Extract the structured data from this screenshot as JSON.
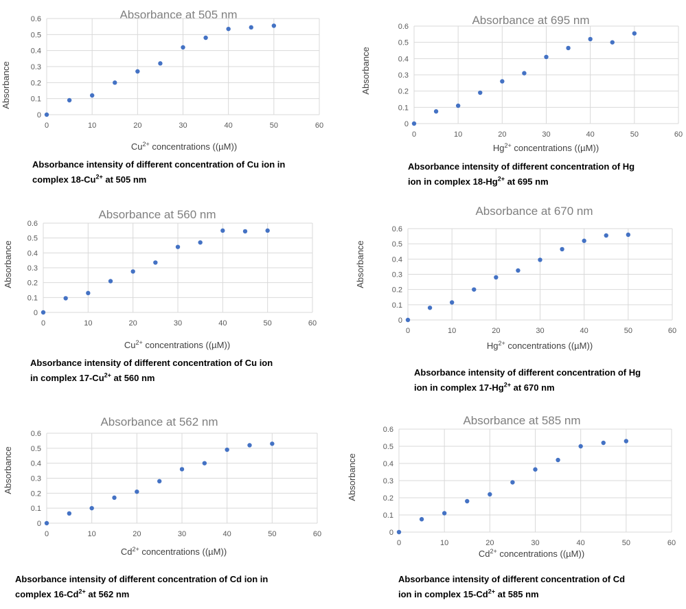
{
  "colors": {
    "marker": "#4472c4",
    "grid": "#d9d9d9",
    "title": "#7f7f7f",
    "tick": "#595959"
  },
  "chart_data": [
    {
      "type": "scatter",
      "title": "Absorbance at 505 nm",
      "xlabel": {
        "pre": "Cu",
        "sup": "2+",
        "post": " concentrations ((µM))"
      },
      "ylabel": "Absorbance",
      "x": [
        0,
        5,
        10,
        15,
        20,
        25,
        30,
        35,
        40,
        45,
        50
      ],
      "y": [
        0.0,
        0.09,
        0.12,
        0.2,
        0.27,
        0.32,
        0.42,
        0.48,
        0.535,
        0.545,
        0.555
      ],
      "xlim": [
        0,
        60
      ],
      "ylim": [
        0,
        0.6
      ],
      "xticks": [
        "0",
        "10",
        "20",
        "30",
        "40",
        "50",
        "60"
      ],
      "yticks": [
        "0",
        "0.1",
        "0.2",
        "0.3",
        "0.4",
        "0.5",
        "0.6"
      ],
      "caption": {
        "line1": "Absorbance intensity of different concentration of Cu ion in",
        "pre": "complex 18-Cu",
        "sup": "2+",
        "post": " at 505 nm"
      }
    },
    {
      "type": "scatter",
      "title": "Absorbance at 695 nm",
      "xlabel": {
        "pre": "Hg",
        "sup": "2+",
        "post": " concentrations ((µM))"
      },
      "ylabel": "Absorbance",
      "x": [
        0,
        5,
        10,
        15,
        20,
        25,
        30,
        35,
        40,
        45,
        50
      ],
      "y": [
        0.0,
        0.075,
        0.11,
        0.19,
        0.26,
        0.31,
        0.41,
        0.465,
        0.52,
        0.5,
        0.555
      ],
      "xlim": [
        0,
        60
      ],
      "ylim": [
        0,
        0.6
      ],
      "xticks": [
        "0",
        "10",
        "20",
        "30",
        "40",
        "50",
        "60"
      ],
      "yticks": [
        "0",
        "0.1",
        "0.2",
        "0.3",
        "0.4",
        "0.5",
        "0.6"
      ],
      "caption": {
        "line1": "Absorbance intensity of different concentration of Hg",
        "pre": "ion in complex 18-Hg",
        "sup": "2+",
        "post": " at 695 nm"
      }
    },
    {
      "type": "scatter",
      "title": "Absorbance at 560 nm",
      "xlabel": {
        "pre": "Cu",
        "sup": "2+",
        "post": " concentrations ((µM))"
      },
      "ylabel": "Absorbance",
      "x": [
        0,
        5,
        10,
        15,
        20,
        25,
        30,
        35,
        40,
        45,
        50
      ],
      "y": [
        0.0,
        0.095,
        0.13,
        0.21,
        0.275,
        0.335,
        0.44,
        0.47,
        0.55,
        0.545,
        0.55
      ],
      "xlim": [
        0,
        60
      ],
      "ylim": [
        0,
        0.6
      ],
      "xticks": [
        "0",
        "10",
        "20",
        "30",
        "40",
        "50",
        "60"
      ],
      "yticks": [
        "0",
        "0.1",
        "0.2",
        "0.3",
        "0.4",
        "0.5",
        "0.6"
      ],
      "caption": {
        "line1": "Absorbance intensity of different concentration of Cu ion",
        "pre": "in complex 17-Cu",
        "sup": "2+",
        "post": " at 560 nm"
      }
    },
    {
      "type": "scatter",
      "title": "Absorbance at 670 nm",
      "xlabel": {
        "pre": "Hg",
        "sup": "2+",
        "post": " concentrations ((µM))"
      },
      "ylabel": "Absorbance",
      "x": [
        0,
        5,
        10,
        15,
        20,
        25,
        30,
        35,
        40,
        45,
        50
      ],
      "y": [
        0.0,
        0.08,
        0.115,
        0.2,
        0.28,
        0.325,
        0.395,
        0.465,
        0.52,
        0.555,
        0.56
      ],
      "xlim": [
        0,
        60
      ],
      "ylim": [
        0,
        0.6
      ],
      "xticks": [
        "0",
        "10",
        "20",
        "30",
        "40",
        "50",
        "60"
      ],
      "yticks": [
        "0",
        "0.1",
        "0.2",
        "0.3",
        "0.4",
        "0.5",
        "0.6"
      ],
      "caption": {
        "line1": "Absorbance intensity of different concentration of Hg",
        "pre": "ion in complex 17-Hg",
        "sup": "2+",
        "post": " at 670 nm"
      }
    },
    {
      "type": "scatter",
      "title": "Absorbance at 562 nm",
      "xlabel": {
        "pre": "Cd",
        "sup": "2+",
        "post": " concentrations ((µM))"
      },
      "ylabel": "Absorbance",
      "x": [
        0,
        5,
        10,
        15,
        20,
        25,
        30,
        35,
        40,
        45,
        50
      ],
      "y": [
        0.0,
        0.065,
        0.1,
        0.17,
        0.21,
        0.28,
        0.36,
        0.4,
        0.49,
        0.52,
        0.53
      ],
      "xlim": [
        0,
        60
      ],
      "ylim": [
        0,
        0.6
      ],
      "xticks": [
        "0",
        "10",
        "20",
        "30",
        "40",
        "50",
        "60"
      ],
      "yticks": [
        "0",
        "0.1",
        "0.2",
        "0.3",
        "0.4",
        "0.5",
        "0.6"
      ],
      "caption": {
        "line1": "Absorbance intensity of different concentration of Cd ion in",
        "pre": "complex 16-Cd",
        "sup": "2+",
        "post": " at 562 nm"
      }
    },
    {
      "type": "scatter",
      "title": "Absorbance at 585 nm",
      "xlabel": {
        "pre": "Cd",
        "sup": "2+",
        "post": " concentrations ((µM))"
      },
      "ylabel": "Absorbance",
      "x": [
        0,
        5,
        10,
        15,
        20,
        25,
        30,
        35,
        40,
        45,
        50
      ],
      "y": [
        0.0,
        0.075,
        0.11,
        0.18,
        0.22,
        0.29,
        0.365,
        0.42,
        0.5,
        0.52,
        0.53
      ],
      "xlim": [
        0,
        60
      ],
      "ylim": [
        0,
        0.6
      ],
      "xticks": [
        "0",
        "10",
        "20",
        "30",
        "40",
        "50",
        "60"
      ],
      "yticks": [
        "0",
        "0.1",
        "0.2",
        "0.3",
        "0.4",
        "0.5",
        "0.6"
      ],
      "caption": {
        "line1": "Absorbance intensity of different concentration of Cd",
        "pre": "ion in complex 15-Cd",
        "sup": "2+",
        "post": " at 585 nm"
      }
    }
  ]
}
